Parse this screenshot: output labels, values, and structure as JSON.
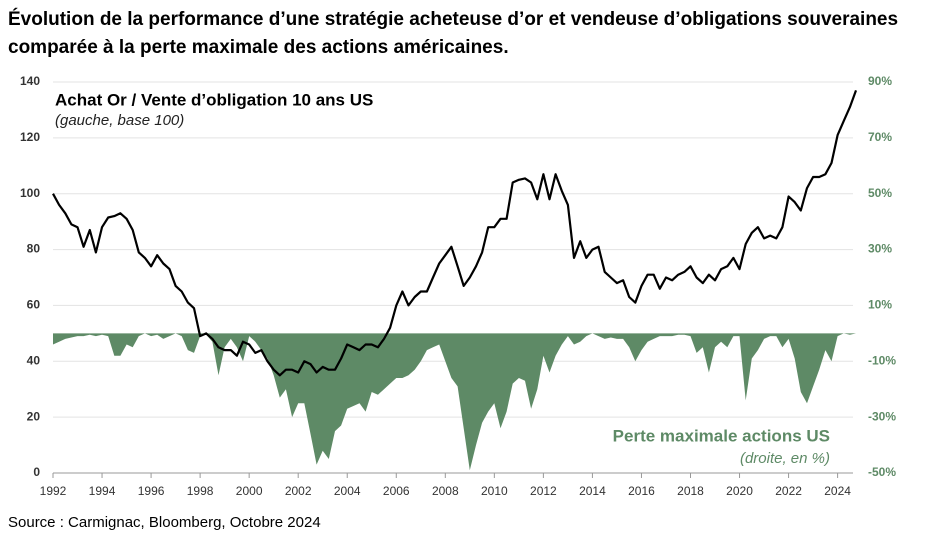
{
  "chart_data": {
    "type": "line",
    "title": "Évolution de la performance d’une stratégie acheteuse d’or et vendeuse d’obligations souveraines comparée à la perte maximale des actions américaines.",
    "source": "Source : Carmignac, Bloomberg, Octobre 2024",
    "x": [
      1992,
      1992.25,
      1992.5,
      1992.75,
      1993,
      1993.25,
      1993.5,
      1993.75,
      1994,
      1994.25,
      1994.5,
      1994.75,
      1995,
      1995.25,
      1995.5,
      1995.75,
      1996,
      1996.25,
      1996.5,
      1996.75,
      1997,
      1997.25,
      1997.5,
      1997.75,
      1998,
      1998.25,
      1998.5,
      1998.75,
      1999,
      1999.25,
      1999.5,
      1999.75,
      2000,
      2000.25,
      2000.5,
      2000.75,
      2001,
      2001.25,
      2001.5,
      2001.75,
      2002,
      2002.25,
      2002.5,
      2002.75,
      2003,
      2003.25,
      2003.5,
      2003.75,
      2004,
      2004.25,
      2004.5,
      2004.75,
      2005,
      2005.25,
      2005.5,
      2005.75,
      2006,
      2006.25,
      2006.5,
      2006.75,
      2007,
      2007.25,
      2007.5,
      2007.75,
      2008,
      2008.25,
      2008.5,
      2008.75,
      2009,
      2009.25,
      2009.5,
      2009.75,
      2010,
      2010.25,
      2010.5,
      2010.75,
      2011,
      2011.25,
      2011.5,
      2011.75,
      2012,
      2012.25,
      2012.5,
      2012.75,
      2013,
      2013.25,
      2013.5,
      2013.75,
      2014,
      2014.25,
      2014.5,
      2014.75,
      2015,
      2015.25,
      2015.5,
      2015.75,
      2016,
      2016.25,
      2016.5,
      2016.75,
      2017,
      2017.25,
      2017.5,
      2017.75,
      2018,
      2018.25,
      2018.5,
      2018.75,
      2019,
      2019.25,
      2019.5,
      2019.75,
      2020,
      2020.25,
      2020.5,
      2020.75,
      2021,
      2021.25,
      2021.5,
      2021.75,
      2022,
      2022.25,
      2022.5,
      2022.75,
      2023,
      2023.25,
      2023.5,
      2023.75,
      2024,
      2024.25,
      2024.5,
      2024.75
    ],
    "series": [
      {
        "name": "Achat Or / Vente d’obligation 10 ans US",
        "note": "(gauche, base 100)",
        "type": "line",
        "color": "#000000",
        "values": [
          100,
          96,
          93,
          89,
          88,
          81,
          87,
          79,
          88,
          91.5,
          92,
          93,
          91,
          87,
          79,
          77,
          74,
          78,
          75,
          73,
          67,
          65,
          61,
          59,
          49,
          50,
          48,
          45,
          44,
          44,
          42,
          47,
          46,
          43,
          44,
          40,
          37,
          35,
          37,
          37,
          36,
          40,
          39,
          36,
          38,
          37,
          37,
          41,
          46,
          45,
          44,
          46,
          46,
          45,
          48,
          52,
          60,
          65,
          60,
          63,
          65,
          65,
          70,
          75,
          78,
          81,
          74,
          67,
          70,
          74,
          79,
          88,
          88,
          91,
          91,
          104,
          105,
          105.5,
          104,
          98,
          107,
          98,
          107,
          101,
          96,
          77,
          83,
          77,
          80,
          81,
          72,
          70,
          68,
          69,
          63,
          61,
          67,
          71,
          71,
          66,
          70,
          69,
          71,
          72,
          74,
          70,
          68,
          71,
          69,
          73,
          74,
          77,
          73,
          82,
          86,
          88,
          84,
          85,
          84,
          88,
          99,
          97,
          94,
          102,
          106,
          106,
          107,
          111,
          121,
          126,
          131,
          137
        ]
      },
      {
        "name": "Perte maximale actions US",
        "note": "(droite, en %)",
        "type": "area",
        "axis": "y2",
        "color": "#5e8a66",
        "values": [
          -4,
          -3,
          -2,
          -1.5,
          -1,
          -1,
          -0.5,
          -1,
          -0.5,
          -1,
          -8,
          -8,
          -4,
          -5,
          -1,
          0,
          -1,
          -0.5,
          -2,
          -1,
          0,
          -1,
          -6,
          -7,
          -1,
          -0.5,
          -3,
          -15,
          -5,
          -2,
          -5,
          -10,
          -1,
          -3,
          -6,
          -9,
          -15,
          -23,
          -20,
          -30,
          -25,
          -25,
          -36,
          -47,
          -42,
          -45,
          -35,
          -33,
          -27,
          -26,
          -25,
          -28,
          -21,
          -22,
          -20,
          -18,
          -16,
          -16,
          -15,
          -13,
          -10,
          -6,
          -5,
          -4,
          -10,
          -16,
          -19,
          -34,
          -49,
          -40,
          -32,
          -28,
          -25,
          -34,
          -28,
          -18,
          -16,
          -17,
          -27,
          -20,
          -8,
          -14,
          -8,
          -4,
          -1,
          -4,
          -3,
          -1,
          0,
          -1,
          -2,
          -1.5,
          -2,
          -2,
          -5,
          -10,
          -6,
          -3,
          -2,
          -1,
          -1,
          -1,
          -0.5,
          -0.5,
          -1,
          -7,
          -5,
          -14,
          -5,
          -3,
          -5,
          -1,
          -1,
          -24,
          -9,
          -6,
          -2,
          -1,
          -1,
          -5,
          -2,
          -9,
          -21,
          -25,
          -19,
          -13,
          -6,
          -10,
          -1,
          0,
          -0.5,
          0
        ]
      }
    ],
    "xlim": [
      1992,
      2024.75
    ],
    "xticks": [
      1992,
      1994,
      1996,
      1998,
      2000,
      2002,
      2004,
      2006,
      2008,
      2010,
      2012,
      2014,
      2016,
      2018,
      2020,
      2022,
      2024
    ],
    "ylim": [
      0,
      140
    ],
    "yticks": [
      0,
      20,
      40,
      60,
      80,
      100,
      120,
      140
    ],
    "y2lim": [
      -50,
      90
    ],
    "y2ticks": [
      {
        "value": -50,
        "label": "-50%"
      },
      {
        "value": -30,
        "label": "-30%"
      },
      {
        "value": -10,
        "label": "-10%"
      },
      {
        "value": 10,
        "label": "10%"
      },
      {
        "value": 30,
        "label": "30%"
      },
      {
        "value": 50,
        "label": "50%"
      },
      {
        "value": 70,
        "label": "70%"
      },
      {
        "value": 90,
        "label": "90%"
      }
    ],
    "y2color": "#5e8a66",
    "grid": true
  }
}
